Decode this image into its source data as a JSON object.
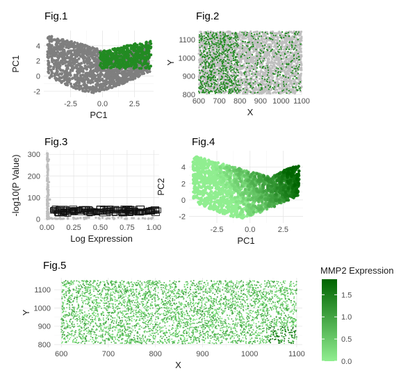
{
  "chart_data": [
    {
      "id": "fig1",
      "type": "scatter",
      "title": "Fig.1",
      "xlabel": "PC1",
      "ylabel": "PC1",
      "xlim": [
        -4.6,
        4.0
      ],
      "ylim": [
        -2.8,
        6.0
      ],
      "xticks": [
        "-2.5",
        "0.0",
        "2.5"
      ],
      "xtick_values": [
        -2.5,
        0,
        2.5
      ],
      "yticks": [
        "-2",
        "0",
        "2",
        "4"
      ],
      "ytick_values": [
        -2,
        0,
        2,
        4
      ],
      "series": [
        {
          "role": "background cells",
          "color": "#7f7f7f"
        },
        {
          "role": "highlighted cluster",
          "color": "#228B22",
          "x_range": [
            -0.2,
            3.8
          ],
          "y_range": [
            0.8,
            4.6
          ]
        }
      ],
      "grid": true
    },
    {
      "id": "fig2",
      "type": "scatter",
      "title": "Fig.2",
      "xlabel": "X",
      "ylabel": "Y",
      "xlim": [
        600,
        1100
      ],
      "ylim": [
        800,
        1150
      ],
      "xticks": [
        "600",
        "700",
        "800",
        "900",
        "1000",
        "1100"
      ],
      "xtick_values": [
        600,
        700,
        800,
        900,
        1000,
        1100
      ],
      "yticks": [
        "800",
        "900",
        "1000",
        "1100"
      ],
      "ytick_values": [
        800,
        900,
        1000,
        1100
      ],
      "series": [
        {
          "role": "background cells",
          "color": "#bfbfbf"
        },
        {
          "role": "highlighted cluster",
          "color": "#228B22"
        }
      ],
      "grid": true
    },
    {
      "id": "fig3",
      "type": "scatter",
      "title": "Fig.3",
      "xlabel": "Log Expression",
      "ylabel": "-log10(P Value)",
      "xlim": [
        -0.03,
        1.05
      ],
      "ylim": [
        -8,
        320
      ],
      "xticks": [
        "0.00",
        "0.25",
        "0.50",
        "0.75",
        "1.00"
      ],
      "xtick_values": [
        0,
        0.25,
        0.5,
        0.75,
        1.0
      ],
      "yticks": [
        "0",
        "100",
        "200",
        "300"
      ],
      "ytick_values": [
        0,
        100,
        200,
        300
      ],
      "label_band_y": 37,
      "series": [
        {
          "role": "genes",
          "color": "#bfbfbf"
        }
      ],
      "grid": true
    },
    {
      "id": "fig4",
      "type": "scatter",
      "title": "Fig.4",
      "xlabel": "PC1",
      "ylabel": "PC2",
      "xlim": [
        -4.6,
        4.0
      ],
      "ylim": [
        -2.8,
        6.0
      ],
      "xticks": [
        "-2.5",
        "0.0",
        "2.5"
      ],
      "xtick_values": [
        -2.5,
        0,
        2.5
      ],
      "yticks": [
        "-2",
        "0",
        "2",
        "4"
      ],
      "ytick_values": [
        -2,
        0,
        2,
        4
      ],
      "color_scale": {
        "low": "#90EE90",
        "high": "#006400"
      },
      "grid": true
    },
    {
      "id": "fig5",
      "type": "scatter",
      "title": "Fig.5",
      "xlabel": "X",
      "ylabel": "Y",
      "xlim": [
        585,
        1112
      ],
      "ylim": [
        785,
        1165
      ],
      "xticks": [
        "600",
        "700",
        "800",
        "900",
        "1000",
        "1100"
      ],
      "xtick_values": [
        600,
        700,
        800,
        900,
        1000,
        1100
      ],
      "yticks": [
        "800",
        "900",
        "1000",
        "1100"
      ],
      "ytick_values": [
        800,
        900,
        1000,
        1100
      ],
      "color_scale": {
        "low": "#90EE90",
        "high": "#006400"
      },
      "legend": {
        "title": "MMP2 Expression",
        "placement": "right",
        "ticks": [
          "0.0",
          "0.5",
          "1.0",
          "1.5"
        ],
        "tick_values": [
          0,
          0.5,
          1.0,
          1.5
        ],
        "range": [
          0,
          1.85
        ]
      },
      "grid": true
    }
  ]
}
